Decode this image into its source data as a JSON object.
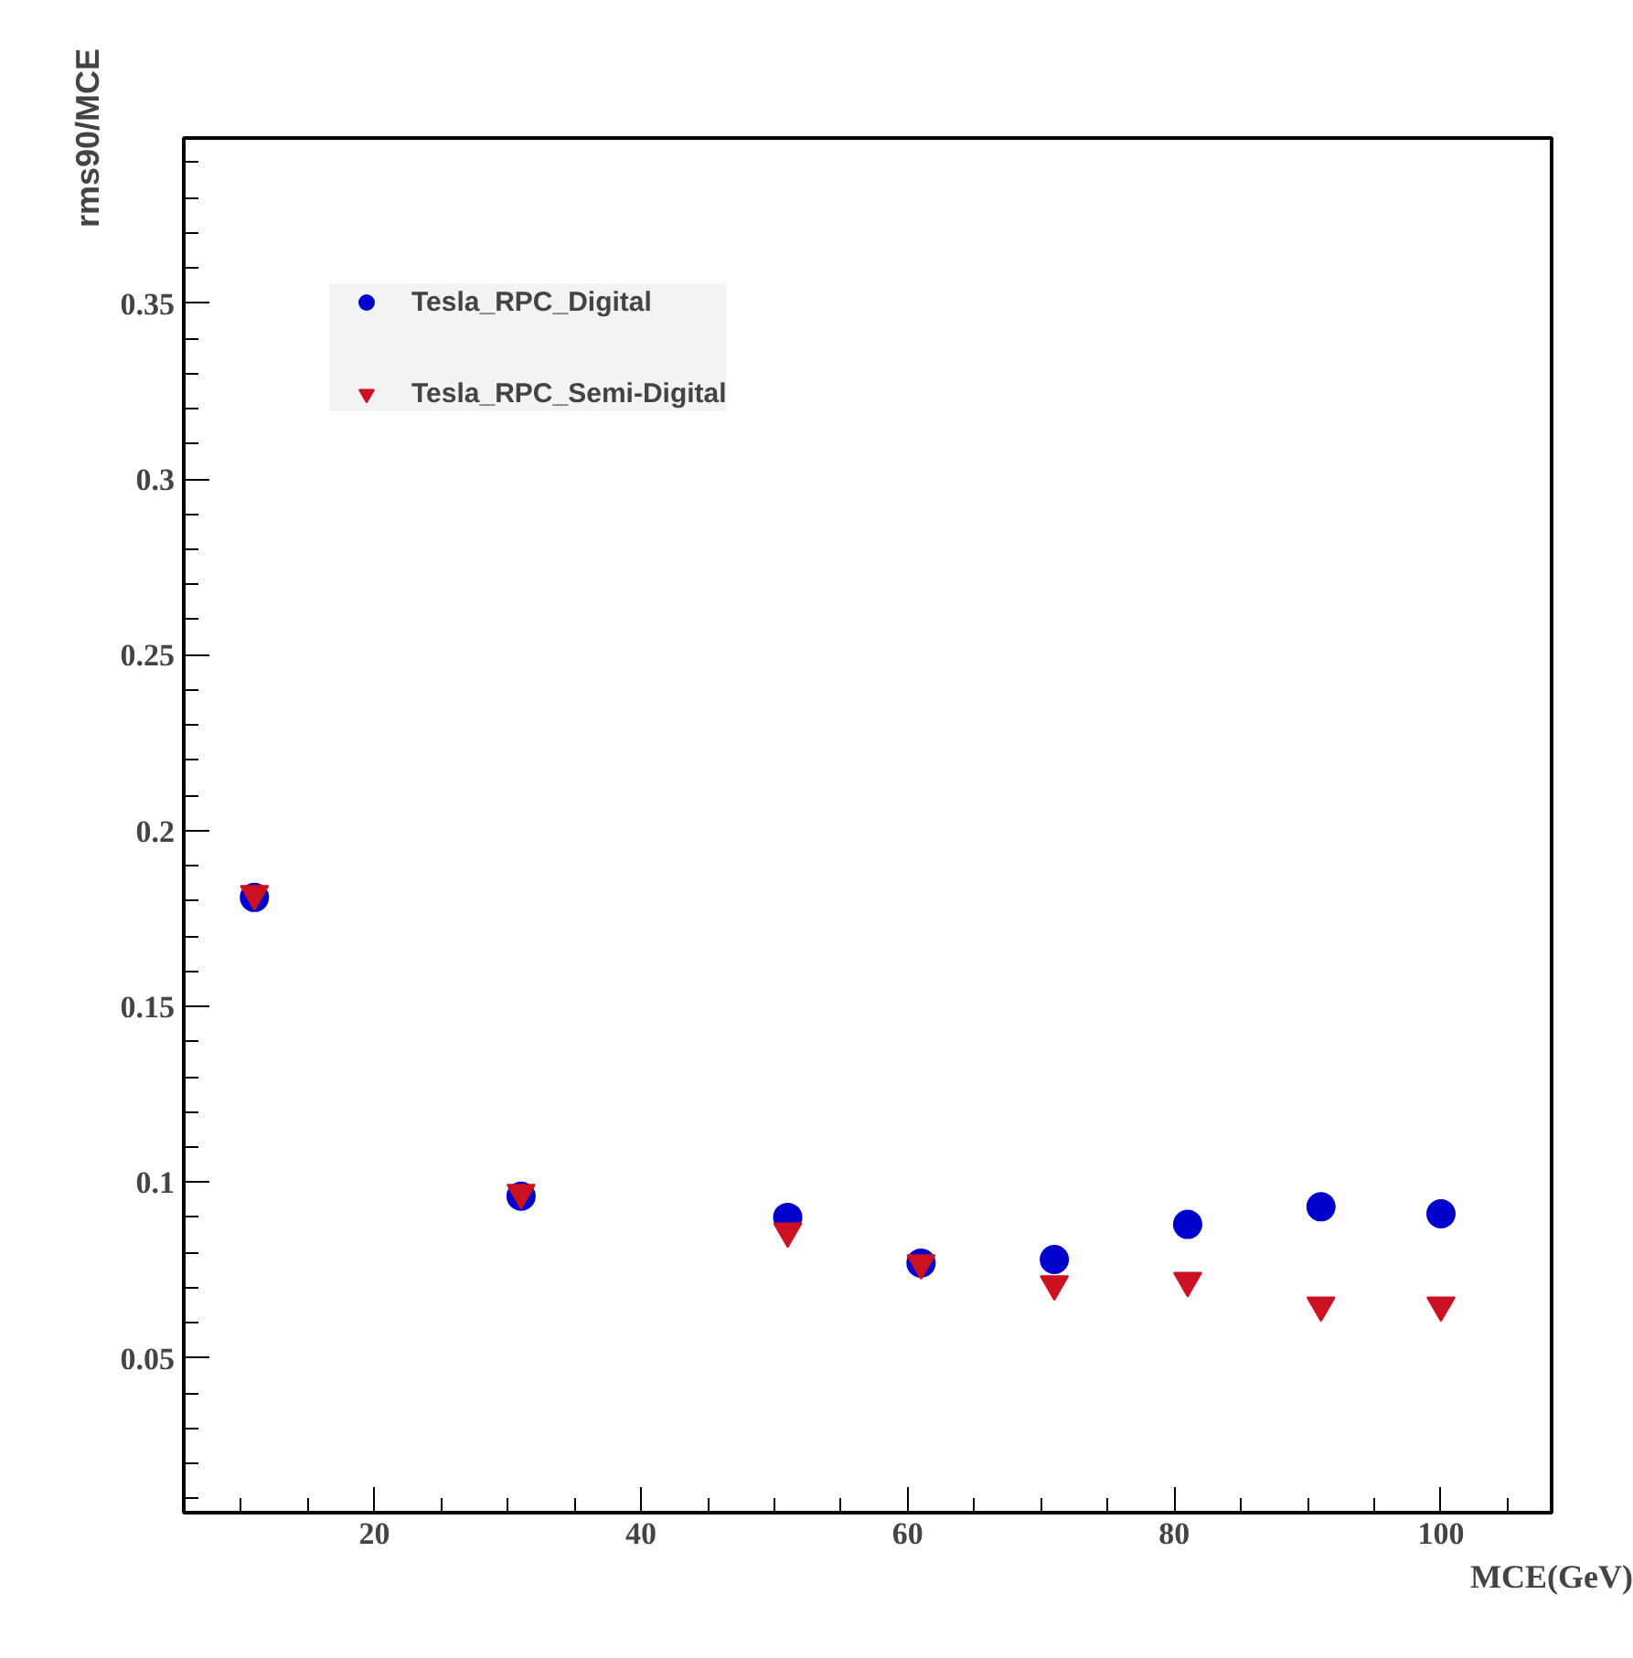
{
  "chart_data": {
    "type": "scatter",
    "xlabel": "MCE(GeV)",
    "ylabel": "rms90/MCE",
    "x": [
      11,
      31,
      51,
      61,
      71,
      81,
      91,
      100
    ],
    "series": [
      {
        "name": "Tesla_RPC_Digital",
        "color": "#0000cc",
        "marker": "circle",
        "values": [
          0.181,
          0.096,
          0.09,
          0.077,
          0.078,
          0.088,
          0.093,
          0.091
        ]
      },
      {
        "name": "Tesla_RPC_Semi-Digital",
        "color": "#cc1122",
        "marker": "triangle",
        "values": [
          0.182,
          0.097,
          0.086,
          0.077,
          0.071,
          0.072,
          0.065,
          0.065
        ]
      }
    ],
    "xlim": [
      5.7,
      108.3
    ],
    "ylim": [
      0.006,
      0.397
    ],
    "xticks": [
      20,
      40,
      60,
      80,
      100
    ],
    "yticks": [
      0.05,
      0.1,
      0.15,
      0.2,
      0.25,
      0.3,
      0.35
    ],
    "grid": false,
    "legend": "top left"
  }
}
